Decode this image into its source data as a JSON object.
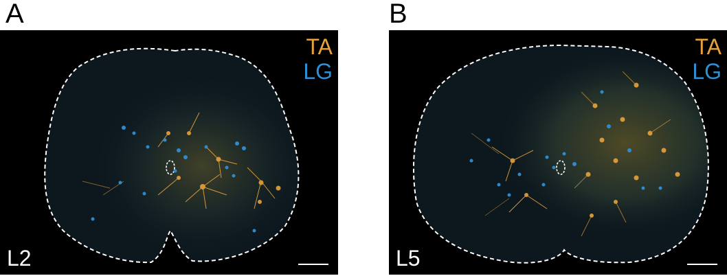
{
  "panels": [
    {
      "letter": "A",
      "level": "L2",
      "legend": [
        {
          "text": "TA",
          "color": "#e8a23a"
        },
        {
          "text": "LG",
          "color": "#2f8fd6"
        }
      ]
    },
    {
      "letter": "B",
      "level": "L5",
      "legend": [
        {
          "text": "TA",
          "color": "#e8a23a"
        },
        {
          "text": "LG",
          "color": "#2f8fd6"
        }
      ]
    }
  ],
  "colors": {
    "ta": "#e8a23a",
    "lg": "#2f8fd6",
    "tissue": "#0d1a22",
    "outline": "#ffffff",
    "background": "#000000"
  }
}
